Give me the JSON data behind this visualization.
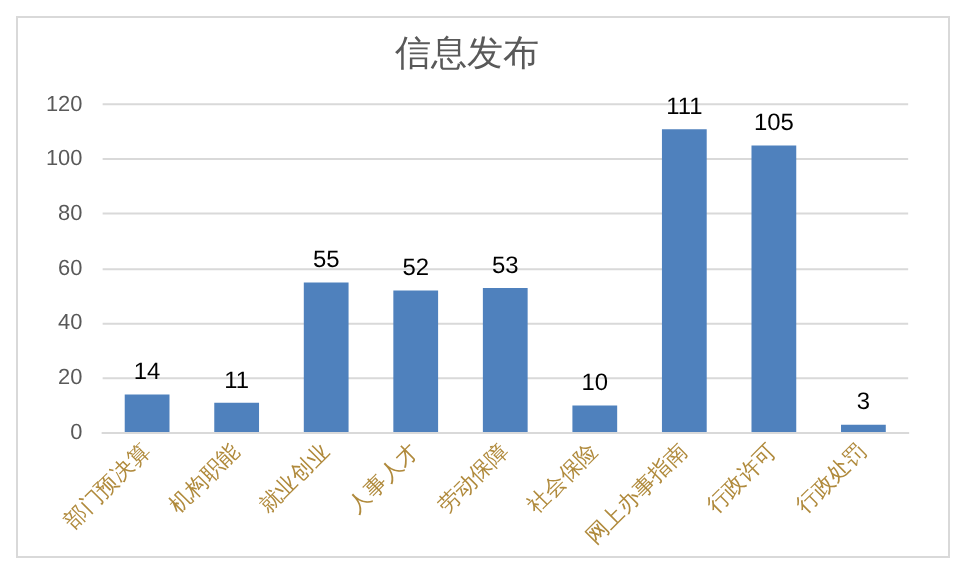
{
  "chart_data": {
    "type": "bar",
    "title": "信息发布",
    "categories": [
      "部门预决算",
      "机构职能",
      "就业创业",
      "人事人才",
      "劳动保障",
      "社会保险",
      "网上办事指南",
      "行政许可",
      "行政处罚"
    ],
    "values": [
      14,
      11,
      55,
      52,
      53,
      10,
      111,
      105,
      3
    ],
    "color": "#4f81bd",
    "ylim": [
      0,
      120
    ],
    "yticks": [
      0,
      20,
      40,
      60,
      80,
      100,
      120
    ],
    "grid": "y",
    "data_labels": true
  }
}
